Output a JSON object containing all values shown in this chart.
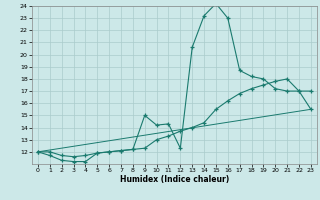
{
  "xlabel": "Humidex (Indice chaleur)",
  "line1_x": [
    0,
    1,
    2,
    3,
    4,
    5,
    6,
    7,
    8,
    9,
    10,
    11,
    12,
    13,
    14,
    15,
    16,
    17,
    18,
    19,
    20,
    21,
    22,
    23
  ],
  "line1_y": [
    12,
    11.7,
    11.3,
    11.2,
    11.2,
    11.9,
    12.0,
    12.1,
    12.2,
    15.0,
    14.2,
    14.3,
    12.3,
    20.6,
    23.2,
    24.2,
    23.0,
    18.7,
    18.2,
    18.0,
    17.2,
    17.0,
    17.0,
    17.0
  ],
  "line2_x": [
    0,
    23
  ],
  "line2_y": [
    12,
    15.5
  ],
  "line3_x": [
    0,
    1,
    2,
    3,
    4,
    5,
    6,
    7,
    8,
    9,
    10,
    11,
    12,
    13,
    14,
    15,
    16,
    17,
    18,
    19,
    20,
    21,
    22,
    23
  ],
  "line3_y": [
    12,
    12,
    11.7,
    11.6,
    11.7,
    11.9,
    12.0,
    12.1,
    12.2,
    12.3,
    13.0,
    13.3,
    13.7,
    14.0,
    14.4,
    15.5,
    16.2,
    16.8,
    17.2,
    17.5,
    17.8,
    18.0,
    17.0,
    15.5
  ],
  "ylim": [
    11,
    24
  ],
  "xlim": [
    -0.5,
    23.5
  ],
  "yticks": [
    12,
    13,
    14,
    15,
    16,
    17,
    18,
    19,
    20,
    21,
    22,
    23,
    24
  ],
  "xticks": [
    0,
    1,
    2,
    3,
    4,
    5,
    6,
    7,
    8,
    9,
    10,
    11,
    12,
    13,
    14,
    15,
    16,
    17,
    18,
    19,
    20,
    21,
    22,
    23
  ],
  "line_color": "#1a7a6e",
  "bg_color": "#cce8e8",
  "grid_color": "#aacccc"
}
